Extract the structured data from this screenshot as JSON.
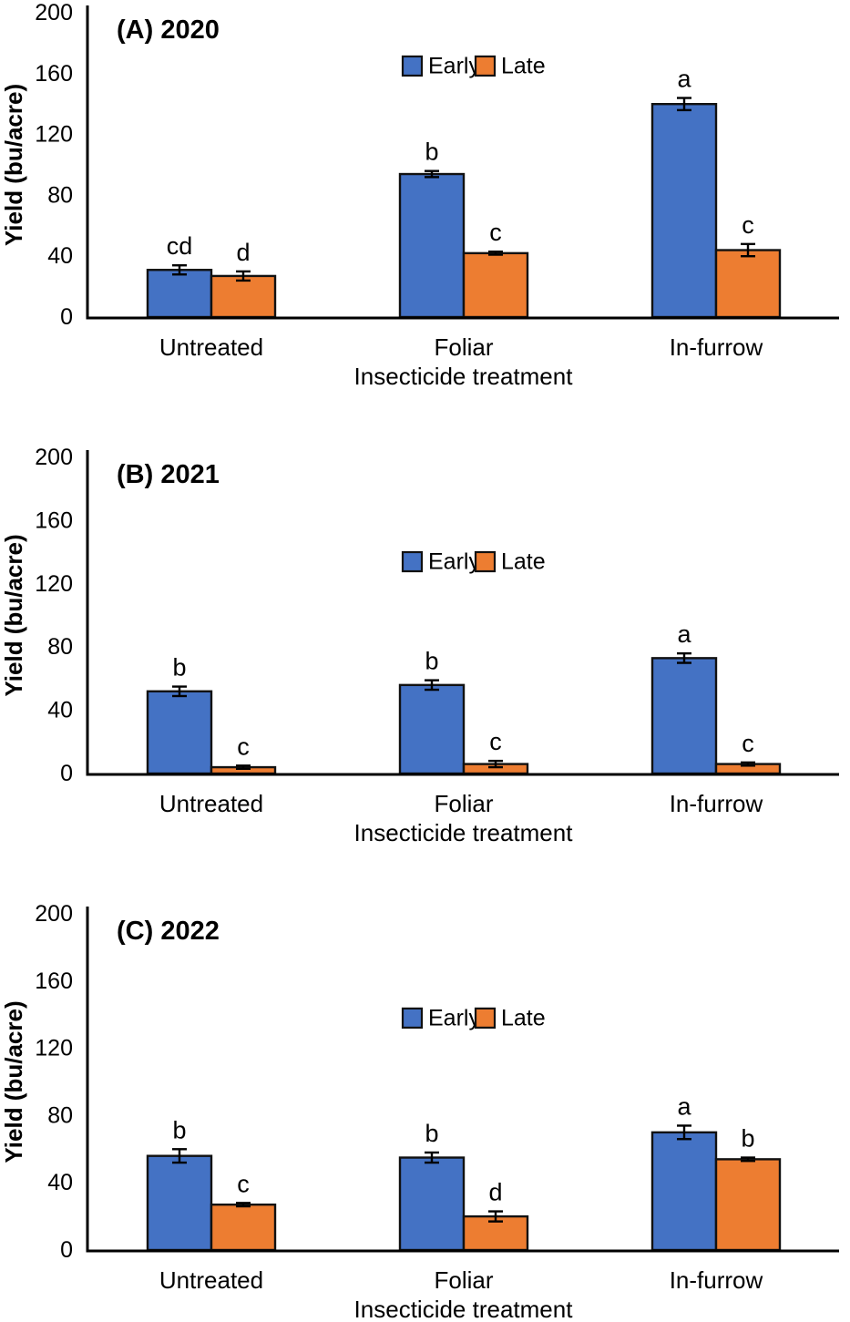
{
  "figure": {
    "background": "#ffffff",
    "accent_colors": {
      "early_blue": "#4472C4",
      "late_orange": "#ED7D31"
    },
    "axis_color": "#000000",
    "bar_border_color": "#111111"
  },
  "chart_data": [
    {
      "type": "bar",
      "title": "(A) 2020",
      "categories": [
        "Untreated",
        "Foliar",
        "In-furrow"
      ],
      "series": [
        {
          "name": "Early",
          "color": "#4472C4",
          "values": [
            31,
            94,
            140
          ],
          "errors": [
            3,
            2,
            4
          ],
          "letters": [
            "cd",
            "b",
            "a"
          ]
        },
        {
          "name": "Late",
          "color": "#ED7D31",
          "values": [
            27,
            42,
            44
          ],
          "errors": [
            3,
            1,
            4
          ],
          "letters": [
            "d",
            "c",
            "c"
          ]
        }
      ],
      "xlabel": "Insecticide treatment",
      "ylabel": "Yield (bu/acre)",
      "ylim": [
        0,
        200
      ],
      "yticks": [
        0,
        40,
        80,
        120,
        160,
        200
      ],
      "grid": false,
      "legend": {
        "labels": [
          "Early",
          "Late"
        ],
        "position": "top-center",
        "y_value": 165
      }
    },
    {
      "type": "bar",
      "title": "(B) 2021",
      "categories": [
        "Untreated",
        "Foliar",
        "In-furrow"
      ],
      "series": [
        {
          "name": "Early",
          "color": "#4472C4",
          "values": [
            52,
            56,
            73
          ],
          "errors": [
            3,
            3,
            3
          ],
          "letters": [
            "b",
            "b",
            "a"
          ]
        },
        {
          "name": "Late",
          "color": "#ED7D31",
          "values": [
            4,
            6,
            6
          ],
          "errors": [
            1,
            2,
            1
          ],
          "letters": [
            "c",
            "c",
            "c"
          ]
        }
      ],
      "xlabel": "Insecticide treatment",
      "ylabel": "Yield (bu/acre)",
      "ylim": [
        0,
        200
      ],
      "yticks": [
        0,
        40,
        80,
        120,
        160,
        200
      ],
      "grid": false,
      "legend": {
        "labels": [
          "Early",
          "Late"
        ],
        "position": "top-center",
        "y_value": 134
      }
    },
    {
      "type": "bar",
      "title": "(C) 2022",
      "categories": [
        "Untreated",
        "Foliar",
        "In-furrow"
      ],
      "series": [
        {
          "name": "Early",
          "color": "#4472C4",
          "values": [
            56,
            55,
            70
          ],
          "errors": [
            4,
            3,
            4
          ],
          "letters": [
            "b",
            "b",
            "a"
          ]
        },
        {
          "name": "Late",
          "color": "#ED7D31",
          "values": [
            27,
            20,
            54
          ],
          "errors": [
            1,
            3,
            1
          ],
          "letters": [
            "c",
            "d",
            "b"
          ]
        }
      ],
      "xlabel": "Insecticide treatment",
      "ylabel": "Yield (bu/acre)",
      "ylim": [
        0,
        200
      ],
      "yticks": [
        0,
        40,
        80,
        120,
        160,
        200
      ],
      "grid": false,
      "legend": {
        "labels": [
          "Early",
          "Late"
        ],
        "position": "top-center",
        "y_value": 138
      }
    }
  ]
}
